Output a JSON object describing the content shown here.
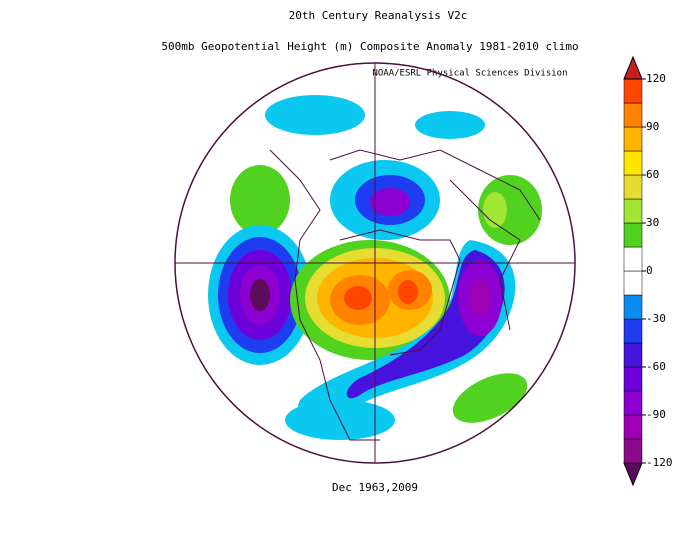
{
  "header": {
    "title": "20th Century Reanalysis V2c",
    "subtitle": "500mb Geopotential Height (m) Composite Anomaly 1981-2010 climo",
    "source": "NOAA/ESRL Physical Sciences Division"
  },
  "footer": {
    "date": "Dec 1963,2009"
  },
  "colorbar": {
    "ticks": [
      -120,
      -90,
      -60,
      -30,
      0,
      30,
      60,
      90,
      120
    ],
    "bounds": [
      -120,
      -105,
      -90,
      -75,
      -60,
      -45,
      -30,
      -15,
      0,
      15,
      30,
      45,
      60,
      75,
      90,
      105,
      120
    ],
    "colors": [
      "#5c0a5c",
      "#8c0a8c",
      "#a000b4",
      "#8c00d2",
      "#6e00dc",
      "#4614dc",
      "#1e3cf0",
      "#0a8cf0",
      "#ffffff",
      "#ffffff",
      "#50d21e",
      "#a0e632",
      "#e6dc32",
      "#ffe600",
      "#ffb400",
      "#ff8200",
      "#ff4600",
      "#c81e1e"
    ]
  }
}
